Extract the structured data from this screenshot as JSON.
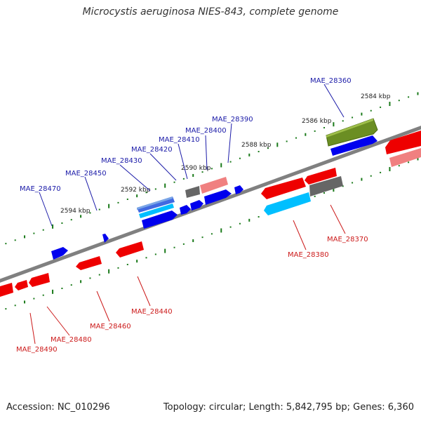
{
  "title": "Microcystis aeruginosa NIES-843, complete genome",
  "footer": {
    "accession": "Accession: NC_010296",
    "summary": "Topology: circular; Length: 5,842,795 bp; Genes: 6,360"
  },
  "colors": {
    "backbone": "#808080",
    "forward_gene": "#0000ff",
    "reverse_gene": "#ff0000",
    "forward_label": "#1a1aa8",
    "reverse_label": "#cc1a1a",
    "tick": "#1a7a1a"
  },
  "scale_labels": [
    "2584 kbp",
    "2586 kbp",
    "2588 kbp",
    "2590 kbp",
    "2592 kbp",
    "2594 kbp"
  ],
  "forward_labels": [
    "MAE_28360",
    "MAE_28390",
    "MAE_28400",
    "MAE_28410",
    "MAE_28420",
    "MAE_28430",
    "MAE_28450",
    "MAE_28470"
  ],
  "reverse_labels": [
    "MAE_28370",
    "MAE_28380",
    "MAE_28440",
    "MAE_28460",
    "MAE_28480",
    "MAE_28490"
  ]
}
